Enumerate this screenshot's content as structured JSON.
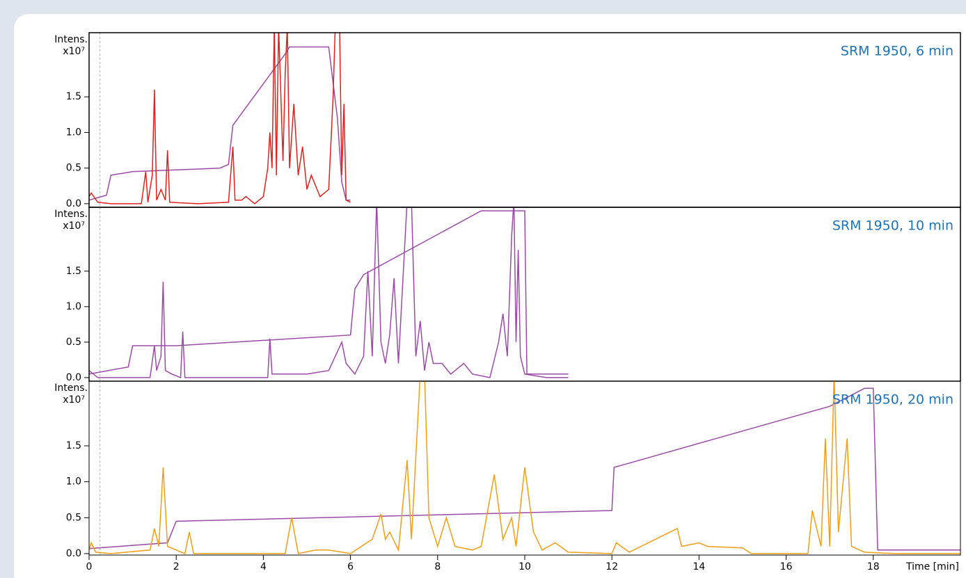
{
  "chart_data": [
    {
      "type": "line",
      "title": "SRM 1950, 6 min",
      "ylabel": "Intens.",
      "yunit": "x10⁷",
      "xlim": [
        0,
        20
      ],
      "ylim": [
        -0.05,
        2.4
      ],
      "yticks": [
        {
          "value": 0,
          "label": "0.0"
        },
        {
          "value": 0.5,
          "label": "0.5"
        },
        {
          "value": 1,
          "label": "1.0"
        },
        {
          "value": 1.5,
          "label": "1.5"
        }
      ],
      "series": [
        {
          "color": "#e3201c",
          "x": [
            0,
            0.05,
            0.2,
            0.5,
            1.2,
            1.3,
            1.35,
            1.45,
            1.5,
            1.55,
            1.65,
            1.75,
            1.8,
            1.85,
            2.5,
            3.2,
            3.3,
            3.35,
            3.5,
            3.6,
            3.8,
            4.0,
            4.1,
            4.15,
            4.2,
            4.25,
            4.3,
            4.35,
            4.45,
            4.5,
            4.55,
            4.6,
            4.7,
            4.8,
            4.9,
            5.0,
            5.1,
            5.3,
            5.5,
            5.6,
            5.65,
            5.75,
            5.8,
            5.85,
            5.9,
            6.0
          ],
          "values": [
            0.1,
            0.15,
            0.02,
            0,
            0,
            0.45,
            0.02,
            0.4,
            1.6,
            0.05,
            0.2,
            0.05,
            0.75,
            0.02,
            0,
            0.02,
            0.8,
            0.05,
            0.05,
            0.1,
            0,
            0.1,
            0.5,
            1.0,
            0.5,
            2.5,
            0.4,
            2.5,
            0.6,
            1.8,
            2.5,
            0.5,
            1.4,
            0.4,
            0.8,
            0.2,
            0.4,
            0.1,
            0.2,
            1.5,
            2.5,
            2.5,
            0.4,
            1.4,
            0.05,
            0.02
          ]
        },
        {
          "color": "#9b4aa8",
          "x": [
            0,
            0.4,
            0.5,
            1.0,
            3.0,
            3.2,
            3.3,
            4.5,
            4.6,
            5.5,
            5.7,
            5.8,
            5.9,
            6.0
          ],
          "values": [
            0.05,
            0.12,
            0.4,
            0.45,
            0.5,
            0.55,
            1.1,
            2.1,
            2.2,
            2.2,
            1.2,
            0.3,
            0.05,
            0.05
          ]
        }
      ]
    },
    {
      "type": "line",
      "title": "SRM 1950, 10 min",
      "ylabel": "Intens.",
      "yunit": "x10⁷",
      "xlim": [
        0,
        20
      ],
      "ylim": [
        -0.05,
        2.4
      ],
      "yticks": [
        {
          "value": 0,
          "label": "0.0"
        },
        {
          "value": 0.5,
          "label": "0.5"
        },
        {
          "value": 1,
          "label": "1.0"
        },
        {
          "value": 1.5,
          "label": "1.5"
        }
      ],
      "series": [
        {
          "color": "#9b4aa8",
          "x": [
            0,
            0.2,
            1.4,
            1.5,
            1.55,
            1.65,
            1.7,
            1.75,
            1.9,
            2.1,
            2.15,
            2.2,
            3.5,
            4.1,
            4.15,
            4.2,
            4.5,
            5.0,
            5.5,
            5.8,
            5.9,
            6.1,
            6.3,
            6.4,
            6.5,
            6.6,
            6.7,
            6.8,
            6.9,
            7.0,
            7.1,
            7.3,
            7.4,
            7.5,
            7.6,
            7.7,
            7.8,
            7.9,
            8.1,
            8.3,
            8.6,
            8.8,
            9.2,
            9.4,
            9.5,
            9.6,
            9.7,
            9.75,
            9.8,
            9.85,
            9.9,
            10.0,
            10.5,
            11.0
          ],
          "values": [
            0.1,
            0,
            0,
            0.45,
            0.1,
            0.3,
            1.35,
            0.1,
            0.05,
            0,
            0.65,
            0,
            0,
            0,
            0.55,
            0.05,
            0.05,
            0.05,
            0.1,
            0.5,
            0.2,
            0.05,
            0.3,
            1.5,
            0.3,
            2.5,
            0.5,
            0.2,
            0.6,
            1.4,
            0.2,
            2.5,
            2.5,
            0.3,
            0.8,
            0.1,
            0.5,
            0.2,
            0.2,
            0.05,
            0.2,
            0.05,
            0,
            0.5,
            0.9,
            0.3,
            2.0,
            2.5,
            0.5,
            1.8,
            0.3,
            0.05,
            0,
            0
          ]
        },
        {
          "color": "#9b4aa8",
          "x": [
            0,
            0.9,
            1.0,
            2.0,
            6.0,
            6.1,
            6.3,
            9.0,
            10.0,
            10.05,
            11.0
          ],
          "values": [
            0.05,
            0.15,
            0.45,
            0.45,
            0.6,
            1.25,
            1.45,
            2.35,
            2.35,
            0.05,
            0.05
          ]
        }
      ]
    },
    {
      "type": "line",
      "title": "SRM 1950, 20 min",
      "ylabel": "Intens.",
      "yunit": "x10⁷",
      "xlabel": "Time [min]",
      "xlim": [
        0,
        20
      ],
      "ylim": [
        -0.02,
        2.4
      ],
      "xticks": [
        0,
        2,
        4,
        6,
        8,
        10,
        12,
        14,
        16,
        18
      ],
      "yticks": [
        {
          "value": 0,
          "label": "0.0"
        },
        {
          "value": 0.5,
          "label": "0.5"
        },
        {
          "value": 1,
          "label": "1.0"
        },
        {
          "value": 1.5,
          "label": "1.5"
        }
      ],
      "series": [
        {
          "color": "#f59d12",
          "x": [
            0,
            0.05,
            0.15,
            0.5,
            1.4,
            1.5,
            1.6,
            1.7,
            1.8,
            2.2,
            2.3,
            2.4,
            4.5,
            4.65,
            4.8,
            5.2,
            5.5,
            6.0,
            6.5,
            6.7,
            6.8,
            6.9,
            7.1,
            7.3,
            7.4,
            7.6,
            7.7,
            7.8,
            8.0,
            8.2,
            8.4,
            8.8,
            9.0,
            9.3,
            9.5,
            9.7,
            9.8,
            10.0,
            10.2,
            10.4,
            10.7,
            11.0,
            12.0,
            12.1,
            12.4,
            13.5,
            13.6,
            14.0,
            14.2,
            15.0,
            15.2,
            16.5,
            16.6,
            16.8,
            16.9,
            17.0,
            17.1,
            17.2,
            17.4,
            17.5,
            17.8,
            18.5,
            20.0
          ],
          "values": [
            0.05,
            0.15,
            0.02,
            0,
            0.05,
            0.35,
            0.1,
            1.2,
            0.1,
            0,
            0.3,
            0,
            0,
            0.5,
            0,
            0.05,
            0.05,
            0,
            0.2,
            0.55,
            0.2,
            0.3,
            0.05,
            1.3,
            0.2,
            2.5,
            2.5,
            0.5,
            0.1,
            0.5,
            0.1,
            0.05,
            0.1,
            1.1,
            0.2,
            0.5,
            0.1,
            1.2,
            0.3,
            0.05,
            0.15,
            0.02,
            0,
            0.15,
            0.02,
            0.35,
            0.1,
            0.15,
            0.1,
            0.08,
            0,
            0,
            0.6,
            0.1,
            1.6,
            0.1,
            2.5,
            0.3,
            1.6,
            0.1,
            0.02,
            0,
            0
          ]
        },
        {
          "color": "#9b4aa8",
          "x": [
            0,
            1.8,
            2.0,
            12.0,
            12.05,
            17.0,
            17.8,
            18.0,
            18.1,
            20.0
          ],
          "values": [
            0.07,
            0.15,
            0.45,
            0.6,
            1.2,
            2.05,
            2.3,
            2.3,
            0.05,
            0.05
          ]
        }
      ]
    }
  ]
}
